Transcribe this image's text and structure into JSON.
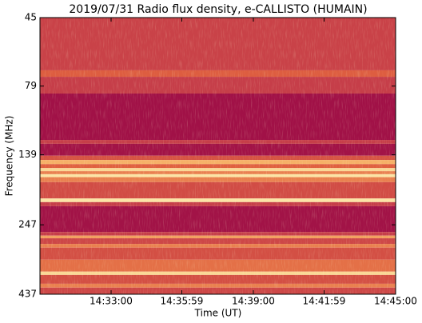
{
  "chart_data": {
    "type": "heatmap",
    "title": "2019/07/31  Radio flux density, e-CALLISTO (HUMAIN)",
    "x_label": "Time (UT)",
    "y_label": "Frequency (MHz)",
    "xlim": [
      52200,
      53100
    ],
    "xticks": [
      {
        "value": 52380,
        "label": "14:33:00"
      },
      {
        "value": 52559,
        "label": "14:35:59"
      },
      {
        "value": 52740,
        "label": "14:39:00"
      },
      {
        "value": 52919,
        "label": "14:41:59"
      },
      {
        "value": 53100,
        "label": "14:45:00"
      }
    ],
    "ylim": [
      45,
      437
    ],
    "yticks": [
      45,
      79,
      139,
      247,
      437
    ],
    "y_log": true,
    "y_inverted": true,
    "colormap": [
      "#9b0a46",
      "#c0364c",
      "#e0603f",
      "#f6b067",
      "#fdf1b4"
    ],
    "freq_edges": [
      45,
      69.4,
      73.2,
      84,
      123,
      127,
      140,
      145,
      150,
      155,
      159,
      163,
      167,
      174,
      199,
      205,
      212,
      262,
      270,
      276,
      289,
      298,
      329,
      363,
      373,
      401,
      414,
      437
    ],
    "values": [
      0.32,
      0.48,
      0.3,
      0.04,
      0.3,
      0.05,
      0.42,
      0.75,
      0.5,
      0.9,
      0.6,
      0.95,
      0.6,
      0.38,
      0.95,
      0.3,
      0.05,
      0.3,
      0.7,
      0.35,
      0.6,
      0.4,
      0.55,
      0.9,
      0.4,
      0.6,
      0.35
    ]
  }
}
